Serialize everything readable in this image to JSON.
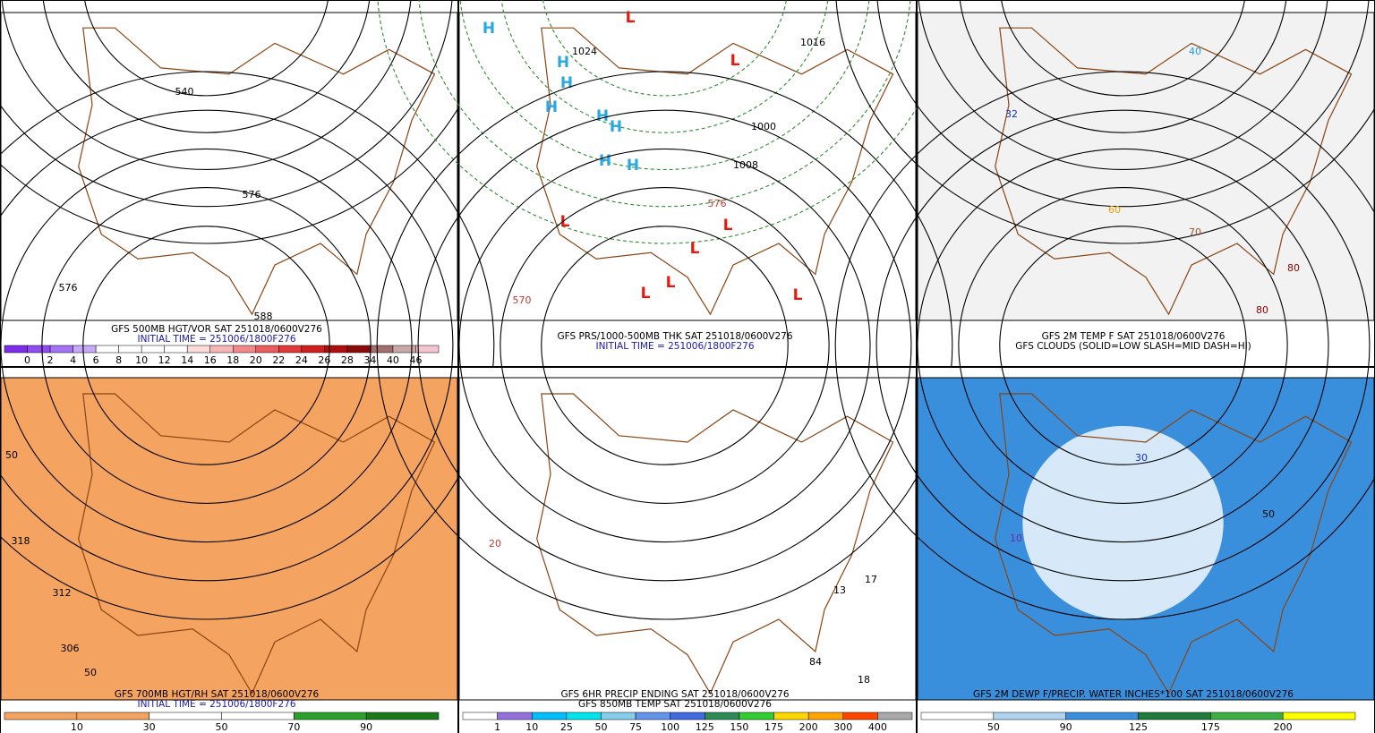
{
  "panels": [
    {
      "caption": [
        "GFS 500MB HGT/VOR SAT 251018/0600V276",
        "INITIAL TIME = 251006/1800F276"
      ],
      "colorbar": {
        "labels": [
          "0",
          "2",
          "4",
          "6",
          "8",
          "10",
          "12",
          "14",
          "16",
          "18",
          "20",
          "22",
          "24",
          "26",
          "28",
          "34",
          "40",
          "46"
        ],
        "colors": [
          "#7b2ee8",
          "#8f4cf0",
          "#a572f3",
          "#c8aaf8",
          "#ffffff",
          "#ffffff",
          "#ffffff",
          "#ffffff",
          "#fbdada",
          "#f7b6b6",
          "#f08a8a",
          "#e85e5e",
          "#e03a3a",
          "#d01f1f",
          "#b00f0f",
          "#8b0a0a",
          "#a07070",
          "#c8a8a8",
          "#f4c6d2"
        ]
      },
      "map_labels": [
        {
          "text": "540",
          "color": "#000"
        },
        {
          "text": "576",
          "color": "#000"
        },
        {
          "text": "576",
          "color": "#000"
        },
        {
          "text": "588",
          "color": "#000"
        }
      ]
    },
    {
      "caption": [
        "GFS PRS/1000-500MB THK SAT 251018/0600V276",
        "INITIAL TIME = 251006/1800F276"
      ],
      "colorbar": null,
      "map_labels": [
        {
          "text": "H",
          "color": "#29a9e0"
        },
        {
          "text": "H",
          "color": "#29a9e0"
        },
        {
          "text": "H",
          "color": "#29a9e0"
        },
        {
          "text": "H",
          "color": "#29a9e0"
        },
        {
          "text": "H",
          "color": "#29a9e0"
        },
        {
          "text": "H",
          "color": "#29a9e0"
        },
        {
          "text": "H",
          "color": "#29a9e0"
        },
        {
          "text": "H",
          "color": "#29a9e0"
        },
        {
          "text": "L",
          "color": "#e8180c"
        },
        {
          "text": "L",
          "color": "#e8180c"
        },
        {
          "text": "L",
          "color": "#e8180c"
        },
        {
          "text": "L",
          "color": "#e8180c"
        },
        {
          "text": "L",
          "color": "#e8180c"
        },
        {
          "text": "L",
          "color": "#e8180c"
        },
        {
          "text": "L",
          "color": "#e8180c"
        },
        {
          "text": "L",
          "color": "#e8180c"
        },
        {
          "text": "1024",
          "color": "#000"
        },
        {
          "text": "1016",
          "color": "#000"
        },
        {
          "text": "1000",
          "color": "#000"
        },
        {
          "text": "1008",
          "color": "#000"
        },
        {
          "text": "570",
          "color": "#c0392b"
        },
        {
          "text": "576",
          "color": "#c0392b"
        }
      ]
    },
    {
      "caption": [
        "GFS 2M TEMP F SAT 251018/0600V276",
        "GFS CLOUDS (SOLID=LOW SLASH=MID DASH=HI)"
      ],
      "colorbar": null,
      "map_labels": [
        {
          "text": "32",
          "color": "#1030d0"
        },
        {
          "text": "40",
          "color": "#19a0e0"
        },
        {
          "text": "60",
          "color": "#f0a000"
        },
        {
          "text": "70",
          "color": "#a0522d"
        },
        {
          "text": "80",
          "color": "#8b0000"
        },
        {
          "text": "80",
          "color": "#8b0000"
        }
      ]
    },
    {
      "caption": [
        "GFS 700MB HGT/RH SAT 251018/0600V276",
        "INITIAL TIME = 251006/1800F276"
      ],
      "colorbar": {
        "labels": [
          "10",
          "30",
          "50",
          "70",
          "90"
        ],
        "colors": [
          "#f4a460",
          "#f4a460",
          "#ffffff",
          "#ffffff",
          "#2ca02c",
          "#1a7a1a"
        ]
      },
      "map_labels": [
        {
          "text": "50",
          "color": "#000"
        },
        {
          "text": "318",
          "color": "#000"
        },
        {
          "text": "312",
          "color": "#000"
        },
        {
          "text": "306",
          "color": "#000"
        },
        {
          "text": "50",
          "color": "#000"
        }
      ]
    },
    {
      "caption": [
        "GFS 6HR PRECIP ENDING SAT 251018/0600V276",
        "GFS 850MB TEMP SAT 251018/0600V276"
      ],
      "colorbar": {
        "labels": [
          "1",
          "10",
          "25",
          "50",
          "75",
          "100",
          "125",
          "150",
          "175",
          "200",
          "300",
          "400"
        ],
        "colors": [
          "#ffffff",
          "#9370db",
          "#00bfff",
          "#00e5ee",
          "#87ceeb",
          "#6495ed",
          "#4169e1",
          "#2e8b57",
          "#32cd32",
          "#ffd700",
          "#ffa500",
          "#ff4500",
          "#a9a9a9"
        ]
      },
      "map_labels": [
        {
          "text": "13",
          "color": "#000"
        },
        {
          "text": "17",
          "color": "#000"
        },
        {
          "text": "84",
          "color": "#000"
        },
        {
          "text": "18",
          "color": "#000"
        },
        {
          "text": "20",
          "color": "#c0392b"
        }
      ]
    },
    {
      "caption": [
        "GFS 2M DEWP F/PRECIP. WATER INCHES*100 SAT 251018/0600V276"
      ],
      "colorbar": {
        "labels": [
          "50",
          "90",
          "125",
          "175",
          "200"
        ],
        "colors": [
          "#ffffff",
          "#aed4f2",
          "#3a8fdc",
          "#1f7a3a",
          "#3cb043",
          "#ffff00"
        ]
      },
      "map_labels": [
        {
          "text": "30",
          "color": "#1030d0"
        },
        {
          "text": "50",
          "color": "#000"
        },
        {
          "text": "10",
          "color": "#7a1fa0"
        }
      ]
    }
  ]
}
